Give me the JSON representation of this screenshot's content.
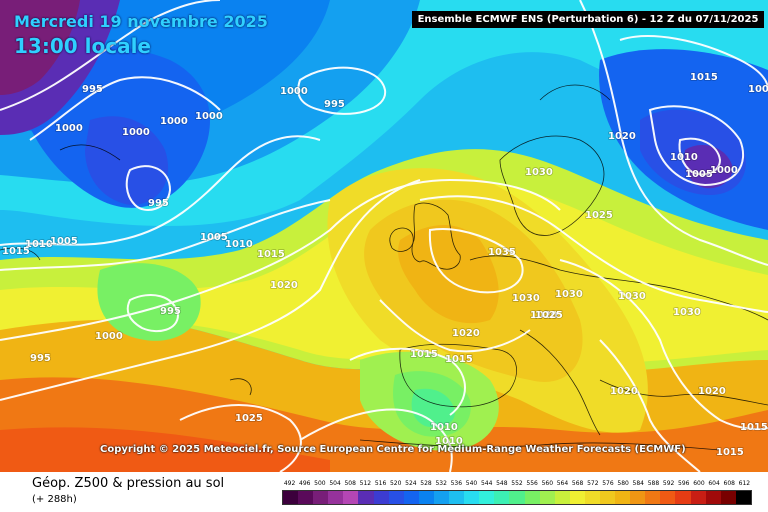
{
  "header": {
    "date_line": "Mercredi 19 novembre 2025",
    "time_line": "13:00 locale",
    "model_banner": "Ensemble ECMWF ENS  (Perturbation 6)  -  12 Z du 07/11/2025"
  },
  "copyright": "Copyright © 2025 Meteociel.fr, Source European Centre for Medium-Range Weather Forecasts (ECMWF)",
  "legend": {
    "title": "Géop. Z500 & pression au sol",
    "subtitle": "(+ 288h)",
    "scale_values": [
      "492",
      "496",
      "500",
      "504",
      "508",
      "512",
      "516",
      "520",
      "524",
      "528",
      "532",
      "536",
      "540",
      "544",
      "548",
      "552",
      "556",
      "560",
      "564",
      "568",
      "572",
      "576",
      "580",
      "584",
      "588",
      "592",
      "596",
      "600",
      "604",
      "608",
      "612"
    ],
    "scale_colors": [
      "#3c003c",
      "#5a0a5a",
      "#781e78",
      "#96329b",
      "#b446b4",
      "#5a2db4",
      "#3c3cd2",
      "#2850e6",
      "#1464f0",
      "#0a82f0",
      "#14a0f0",
      "#1ebef0",
      "#28dcf0",
      "#32f0dc",
      "#3cf0b4",
      "#50f08c",
      "#78f064",
      "#a0f050",
      "#c8f03c",
      "#f0f032",
      "#f0dc28",
      "#f0c81e",
      "#f0b414",
      "#f09614",
      "#f07814",
      "#f05a14",
      "#e63c14",
      "#c81e14",
      "#a00a0a",
      "#780000",
      "#000000"
    ]
  },
  "pressure_labels": [
    {
      "text": "995"
    },
    {
      "text": "1000"
    },
    {
      "text": "1000"
    },
    {
      "text": "1000"
    },
    {
      "text": "1000"
    },
    {
      "text": "1000"
    },
    {
      "text": "995"
    },
    {
      "text": "995"
    },
    {
      "text": "1010"
    },
    {
      "text": "1005"
    },
    {
      "text": "1015"
    },
    {
      "text": "1005"
    },
    {
      "text": "1010"
    },
    {
      "text": "1015"
    },
    {
      "text": "1020"
    },
    {
      "text": "995"
    },
    {
      "text": "1000"
    },
    {
      "text": "995"
    },
    {
      "text": "1025"
    },
    {
      "text": "1030"
    },
    {
      "text": "1035"
    },
    {
      "text": "1030"
    },
    {
      "text": "1025"
    },
    {
      "text": "1020"
    },
    {
      "text": "1015"
    },
    {
      "text": "1015"
    },
    {
      "text": "1020"
    },
    {
      "text": "1010"
    },
    {
      "text": "1010"
    },
    {
      "text": "1015"
    },
    {
      "text": "1010"
    },
    {
      "text": "1005"
    },
    {
      "text": "1000"
    },
    {
      "text": "1000"
    },
    {
      "text": "1025"
    },
    {
      "text": "1020"
    },
    {
      "text": "1030"
    },
    {
      "text": "1030"
    },
    {
      "text": "1020"
    },
    {
      "text": "1020"
    },
    {
      "text": "1015"
    },
    {
      "text": "1015"
    },
    {
      "text": "1030"
    }
  ]
}
